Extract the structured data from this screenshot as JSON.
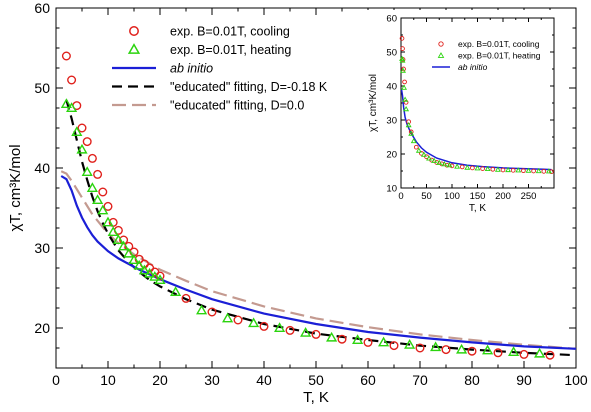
{
  "colors": {
    "cooling": "#e0201b",
    "heating": "#2bd40e",
    "ab_initio": "#1b1fd6",
    "fit_d018": "#000000",
    "fit_d0": "#c49a90"
  },
  "chart_data": [
    {
      "type": "scatter",
      "title": "",
      "xlabel": "T, K",
      "ylabel": "χT, cm³K/mol",
      "xlim": [
        0,
        100
      ],
      "ylim": [
        15,
        60
      ],
      "xticks": [
        0,
        10,
        20,
        30,
        40,
        50,
        60,
        70,
        80,
        90,
        100
      ],
      "yticks": [
        20,
        30,
        40,
        50,
        60
      ],
      "legend_position": "top",
      "series": [
        {
          "name": "exp. B=0.01T, cooling",
          "marker": "circle",
          "color": "#e0201b",
          "x": [
            2,
            3,
            4,
            5,
            6,
            7,
            8,
            9,
            10,
            11,
            12,
            13,
            14,
            15,
            16,
            17,
            18,
            19,
            20,
            25,
            30,
            35,
            40,
            45,
            50,
            55,
            60,
            65,
            70,
            75,
            80,
            85,
            90,
            95
          ],
          "y": [
            54,
            51,
            47.8,
            45,
            43.3,
            41.2,
            39.2,
            37,
            35.2,
            33.2,
            32.2,
            31,
            30.2,
            29.5,
            28.6,
            28,
            27.5,
            27,
            26.5,
            23.7,
            22,
            21,
            20.2,
            19.7,
            19.2,
            18.6,
            18.2,
            17.8,
            17.5,
            17.3,
            17.1,
            16.9,
            16.7,
            16.6
          ]
        },
        {
          "name": "exp. B=0.01T, heating",
          "marker": "triangle",
          "color": "#2bd40e",
          "x": [
            2,
            3,
            4,
            5,
            6,
            7,
            8,
            9,
            10,
            11,
            12,
            13,
            14,
            15,
            16,
            17,
            18,
            19,
            20,
            23,
            28,
            33,
            38,
            43,
            48,
            53,
            58,
            63,
            68,
            73,
            78,
            83,
            88,
            93
          ],
          "y": [
            48,
            47.5,
            44.5,
            42.3,
            39.5,
            37.5,
            36,
            34.7,
            33.2,
            32,
            31,
            30.2,
            29.3,
            28.5,
            27.8,
            27.2,
            26.8,
            26.4,
            26,
            24.5,
            22.2,
            21.2,
            20.6,
            20,
            19.4,
            18.8,
            18.5,
            18.2,
            17.9,
            17.6,
            17.3,
            17.2,
            17,
            16.8
          ]
        },
        {
          "name": "ab initio",
          "line": "solid",
          "color": "#1b1fd6",
          "x": [
            1,
            2,
            3,
            4,
            5,
            6,
            7,
            8,
            10,
            12,
            14,
            16,
            18,
            20,
            25,
            30,
            40,
            50,
            60,
            70,
            80,
            90,
            100
          ],
          "y": [
            39,
            38.6,
            37.2,
            35.3,
            33.8,
            32.6,
            31.6,
            30.8,
            29.6,
            28.7,
            28,
            27.3,
            26.7,
            26.1,
            24.8,
            23.6,
            21.8,
            20.5,
            19.5,
            18.8,
            18.2,
            17.7,
            17.4
          ]
        },
        {
          "name": "\"educated\" fitting, D=-0.18 K",
          "line": "dashed",
          "color": "#000000",
          "x": [
            2,
            3,
            4,
            5,
            6,
            7,
            8,
            9,
            10,
            12,
            14,
            16,
            18,
            20,
            25,
            30,
            40,
            50,
            60,
            70,
            80,
            90,
            100
          ],
          "y": [
            48.5,
            46.2,
            43.5,
            40.8,
            38.5,
            36.4,
            34.6,
            33.1,
            31.8,
            29.7,
            28.2,
            27,
            26,
            25.2,
            23.6,
            22.3,
            20.5,
            19.3,
            18.5,
            17.8,
            17.3,
            16.9,
            16.6
          ]
        },
        {
          "name": "\"educated\" fitting, D=0.0",
          "line": "dashed",
          "color": "#c49a90",
          "x": [
            1,
            2,
            3,
            5,
            7,
            10,
            12,
            15,
            20,
            25,
            30,
            40,
            50,
            60,
            70,
            80,
            90,
            100
          ],
          "y": [
            39.6,
            39.3,
            38.4,
            36.3,
            34.2,
            31.8,
            30.6,
            29.2,
            27.3,
            25.9,
            24.6,
            22.7,
            21.2,
            20.1,
            19.2,
            18.5,
            17.9,
            17.4
          ]
        }
      ]
    },
    {
      "type": "scatter",
      "title": "",
      "xlabel": "T, K",
      "ylabel": "χT, cm³K/mol",
      "xlim": [
        0,
        300
      ],
      "ylim": [
        10,
        60
      ],
      "xticks": [
        0,
        50,
        100,
        150,
        200,
        250
      ],
      "yticks": [
        10,
        20,
        30,
        40,
        50,
        60
      ],
      "legend_position": "top-right",
      "series": [
        {
          "name": "exp. B=0.01T, cooling",
          "marker": "circle",
          "color": "#e0201b",
          "x": [
            2,
            3,
            4,
            5,
            7,
            10,
            15,
            20,
            30,
            40,
            50,
            60,
            70,
            80,
            90,
            100,
            120,
            140,
            160,
            180,
            200,
            220,
            240,
            260,
            280,
            295
          ],
          "y": [
            54,
            51,
            47.8,
            45,
            41.2,
            35.2,
            29.5,
            26.5,
            22,
            20.2,
            19.2,
            18.2,
            17.5,
            17.1,
            16.7,
            16.5,
            16.2,
            15.9,
            15.7,
            15.5,
            15.3,
            15.2,
            15.1,
            15,
            14.9,
            14.8
          ]
        },
        {
          "name": "exp. B=0.01T, heating",
          "marker": "triangle",
          "color": "#2bd40e",
          "x": [
            2,
            3,
            4,
            6,
            8,
            10,
            15,
            20,
            25,
            35,
            45,
            55,
            65,
            75,
            85,
            95,
            110,
            130,
            150,
            170,
            190,
            210,
            230,
            250,
            270,
            290
          ],
          "y": [
            48,
            47.5,
            44.5,
            39.5,
            36,
            33.2,
            28.5,
            26,
            23.8,
            21,
            19.8,
            18.7,
            18,
            17.4,
            17,
            16.7,
            16.3,
            16,
            15.8,
            15.6,
            15.4,
            15.3,
            15.2,
            15.1,
            15,
            14.9
          ]
        },
        {
          "name": "ab initio",
          "line": "solid",
          "color": "#1b1fd6",
          "x": [
            1,
            3,
            5,
            8,
            12,
            16,
            20,
            30,
            40,
            50,
            70,
            100,
            130,
            160,
            200,
            240,
            280,
            295
          ],
          "y": [
            39,
            37.2,
            33.8,
            30.8,
            28.7,
            27.3,
            26.1,
            23.6,
            21.8,
            20.5,
            18.8,
            17.4,
            16.7,
            16.3,
            15.9,
            15.7,
            15.5,
            15.4
          ]
        }
      ]
    }
  ]
}
